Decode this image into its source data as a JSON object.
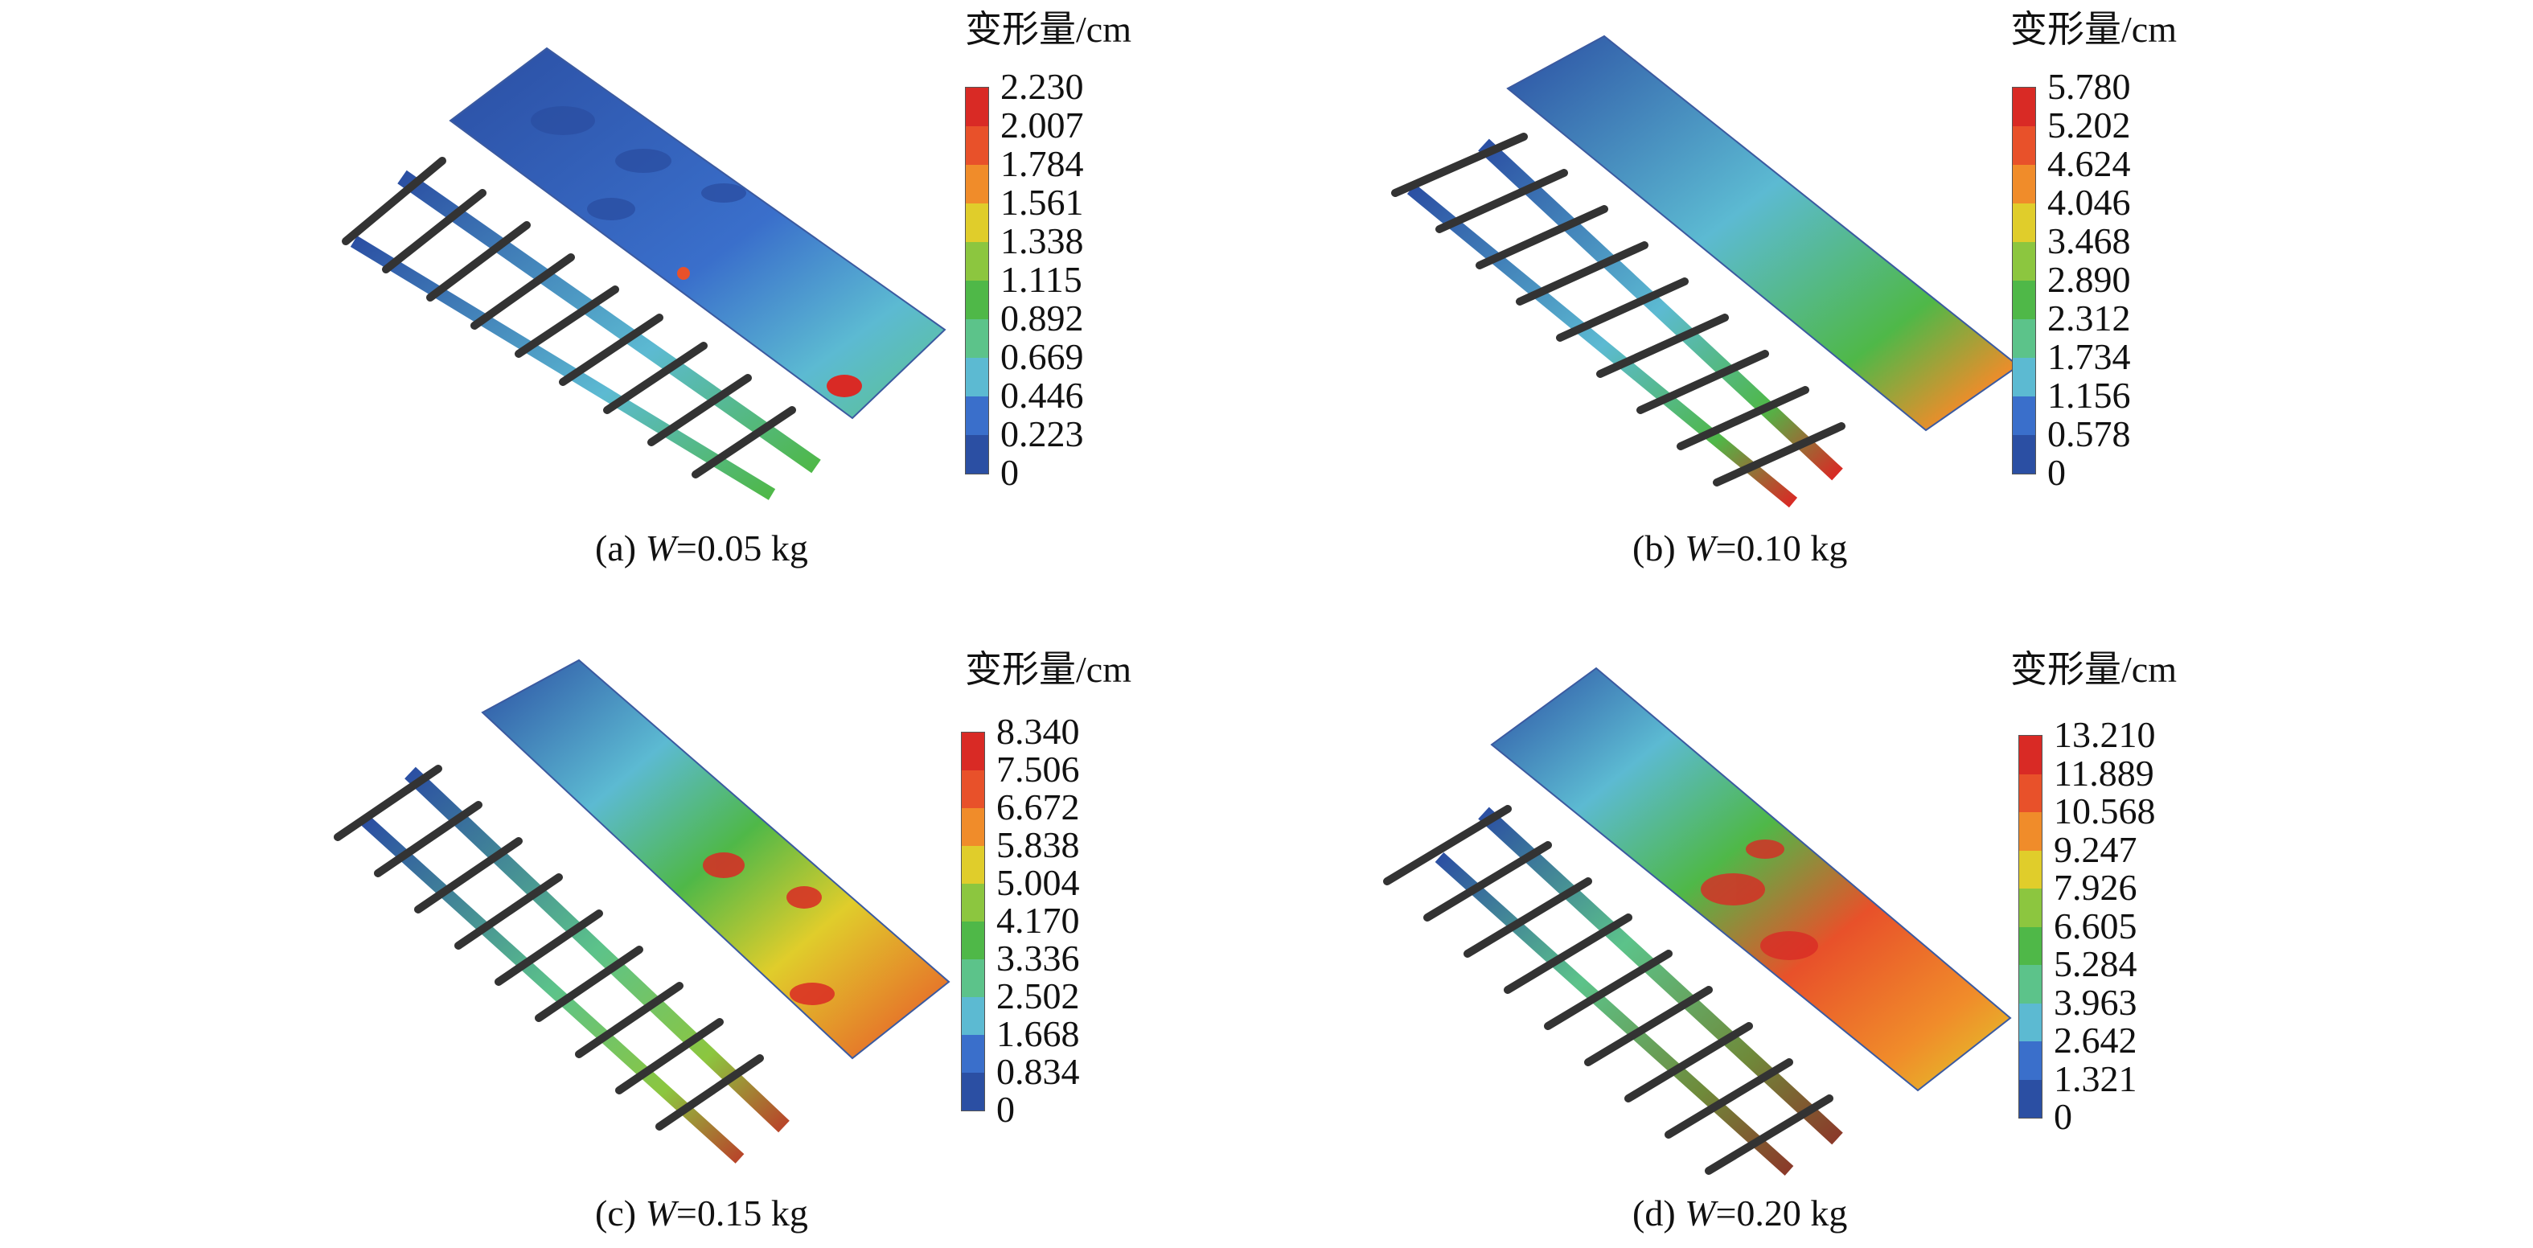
{
  "palette": [
    "#2b4fa3",
    "#3a6fcb",
    "#5cbad2",
    "#5cc38a",
    "#4fb848",
    "#8cc63f",
    "#e0cd2b",
    "#f08c2a",
    "#e8512a",
    "#d92a25"
  ],
  "panels": [
    {
      "id": "a",
      "legend_title": "变形量/cm",
      "ticks": [
        "2.230",
        "2.007",
        "1.784",
        "1.561",
        "1.338",
        "1.115",
        "0.892",
        "0.669",
        "0.446",
        "0.223",
        "0"
      ],
      "caption_prefix": "(a) ",
      "caption_var": "W",
      "caption_value": "=0.05 kg"
    },
    {
      "id": "b",
      "legend_title": "变形量/cm",
      "ticks": [
        "5.780",
        "5.202",
        "4.624",
        "4.046",
        "3.468",
        "2.890",
        "2.312",
        "1.734",
        "1.156",
        "0.578",
        "0"
      ],
      "caption_prefix": "(b) ",
      "caption_var": "W",
      "caption_value": "=0.10 kg"
    },
    {
      "id": "c",
      "legend_title": "变形量/cm",
      "ticks": [
        "8.340",
        "7.506",
        "6.672",
        "5.838",
        "5.004",
        "4.170",
        "3.336",
        "2.502",
        "1.668",
        "0.834",
        "0"
      ],
      "caption_prefix": "(c) ",
      "caption_var": "W",
      "caption_value": "=0.15 kg"
    },
    {
      "id": "d",
      "legend_title": "变形量/cm",
      "ticks": [
        "13.210",
        "11.889",
        "10.568",
        "9.247",
        "7.926",
        "6.605",
        "5.284",
        "3.963",
        "2.642",
        "1.321",
        "0"
      ],
      "caption_prefix": "(d) ",
      "caption_var": "W",
      "caption_value": "=0.20 kg"
    }
  ]
}
